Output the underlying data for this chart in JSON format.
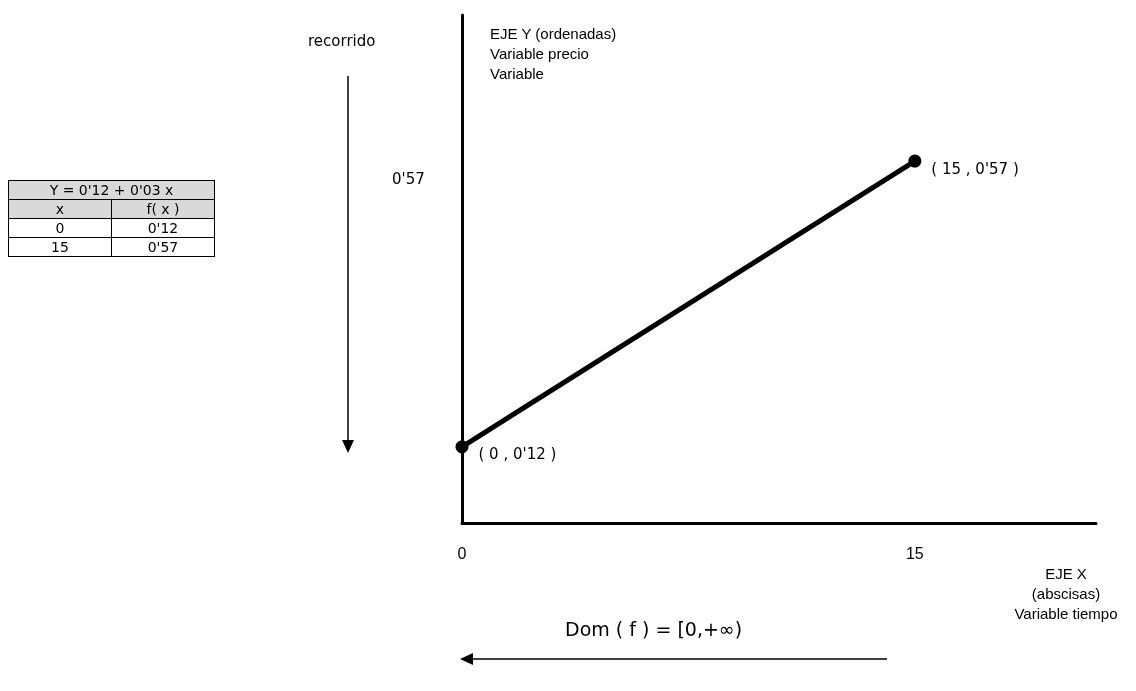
{
  "chart_data": {
    "type": "line",
    "xlabel": "EJE X\n(abscisas)\nVariable tiempo",
    "ylabel": "EJE Y (ordenadas)\nVariable precio\nVariable",
    "annotations": [
      "recorrido",
      "Dom ( f ) = [0,+∞)",
      "Y = 0'12 + 0'03 x",
      "x",
      "f( x )",
      "0",
      "0'12",
      "15",
      "0'57",
      "0'57"
    ],
    "x": [
      0,
      15
    ],
    "series": [
      {
        "color": "#000000",
        "values": [
          0.12,
          0.57
        ],
        "value_labels": [
          "( 0 , 0'12 )",
          "( 15 , 0'57 )"
        ]
      }
    ],
    "ylim": [
      0,
      0.8
    ],
    "xlim": [
      0,
      21
    ],
    "xticks": [
      0,
      15
    ],
    "marker": "circle",
    "line_style": "solid"
  }
}
